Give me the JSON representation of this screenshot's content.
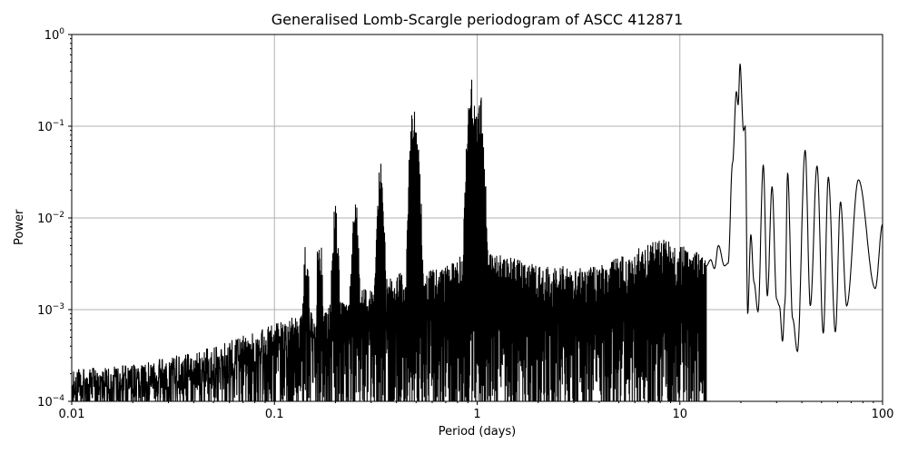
{
  "chart_data": {
    "type": "line",
    "title": "Generalised Lomb-Scargle periodogram of ASCC 412871",
    "xlabel": "Period (days)",
    "ylabel": "Power",
    "xscale": "log",
    "yscale": "log",
    "xlim": [
      0.01,
      100
    ],
    "ylim": [
      0.0001,
      1
    ],
    "grid": true,
    "legend": null,
    "x_ticks": [
      {
        "value": 0.01,
        "label": "0.01"
      },
      {
        "value": 0.1,
        "label": "0.1"
      },
      {
        "value": 1,
        "label": "1"
      },
      {
        "value": 10,
        "label": "10"
      },
      {
        "value": 100,
        "label": "100"
      }
    ],
    "y_ticks": [
      {
        "value": 0.0001,
        "base": "10",
        "exp": "−4"
      },
      {
        "value": 0.001,
        "base": "10",
        "exp": "−3"
      },
      {
        "value": 0.01,
        "base": "10",
        "exp": "−2"
      },
      {
        "value": 0.1,
        "base": "10",
        "exp": "−1"
      },
      {
        "value": 1,
        "base": "10",
        "exp": "0"
      }
    ],
    "line_color": "#000000",
    "grid_color": "#b0b0b0",
    "notable_peaks": [
      {
        "period": 0.143,
        "power": 0.0065
      },
      {
        "period": 0.167,
        "power": 0.008
      },
      {
        "period": 0.2,
        "power": 0.016
      },
      {
        "period": 0.25,
        "power": 0.022
      },
      {
        "period": 0.333,
        "power": 0.045
      },
      {
        "period": 0.485,
        "power": 0.2
      },
      {
        "period": 0.5,
        "power": 0.15
      },
      {
        "period": 0.935,
        "power": 0.37
      },
      {
        "period": 0.97,
        "power": 0.21
      },
      {
        "period": 1.03,
        "power": 0.3
      },
      {
        "period": 19.0,
        "power": 0.24
      },
      {
        "period": 19.8,
        "power": 0.48
      },
      {
        "period": 21.0,
        "power": 0.1
      }
    ],
    "long_period_curve": [
      [
        13.5,
        0.003
      ],
      [
        14.2,
        0.0035
      ],
      [
        14.8,
        0.0028
      ],
      [
        15.5,
        0.005
      ],
      [
        16.6,
        0.003
      ],
      [
        17.3,
        0.0032
      ],
      [
        18.2,
        0.04
      ],
      [
        19.0,
        0.24
      ],
      [
        19.4,
        0.17
      ],
      [
        19.8,
        0.48
      ],
      [
        20.6,
        0.09
      ],
      [
        21.0,
        0.1
      ],
      [
        21.6,
        0.0009
      ],
      [
        22.4,
        0.0066
      ],
      [
        23.2,
        0.002
      ],
      [
        24.3,
        0.00095
      ],
      [
        25.8,
        0.038
      ],
      [
        27.0,
        0.0014
      ],
      [
        28.5,
        0.022
      ],
      [
        30.0,
        0.0013
      ],
      [
        31.0,
        0.0011
      ],
      [
        32.1,
        0.00045
      ],
      [
        33.0,
        0.0012
      ],
      [
        34.0,
        0.031
      ],
      [
        36.0,
        0.0008
      ],
      [
        38.0,
        0.00035
      ],
      [
        41.5,
        0.055
      ],
      [
        44.0,
        0.0011
      ],
      [
        47.5,
        0.037
      ],
      [
        51.0,
        0.00055
      ],
      [
        54.0,
        0.028
      ],
      [
        58.5,
        0.00057
      ],
      [
        62.0,
        0.015
      ],
      [
        66.5,
        0.0011
      ],
      [
        76.0,
        0.026
      ],
      [
        92.0,
        0.0017
      ],
      [
        100.0,
        0.0085
      ]
    ],
    "noise_envelope": [
      [
        0.01,
        0.00022
      ],
      [
        0.02,
        0.00025
      ],
      [
        0.03,
        0.0003
      ],
      [
        0.05,
        0.0004
      ],
      [
        0.1,
        0.0007
      ],
      [
        0.2,
        0.0012
      ],
      [
        0.4,
        0.0025
      ],
      [
        0.7,
        0.003
      ],
      [
        1.0,
        0.005
      ],
      [
        2.0,
        0.003
      ],
      [
        4.0,
        0.003
      ],
      [
        8.0,
        0.006
      ],
      [
        13.5,
        0.004
      ]
    ]
  }
}
